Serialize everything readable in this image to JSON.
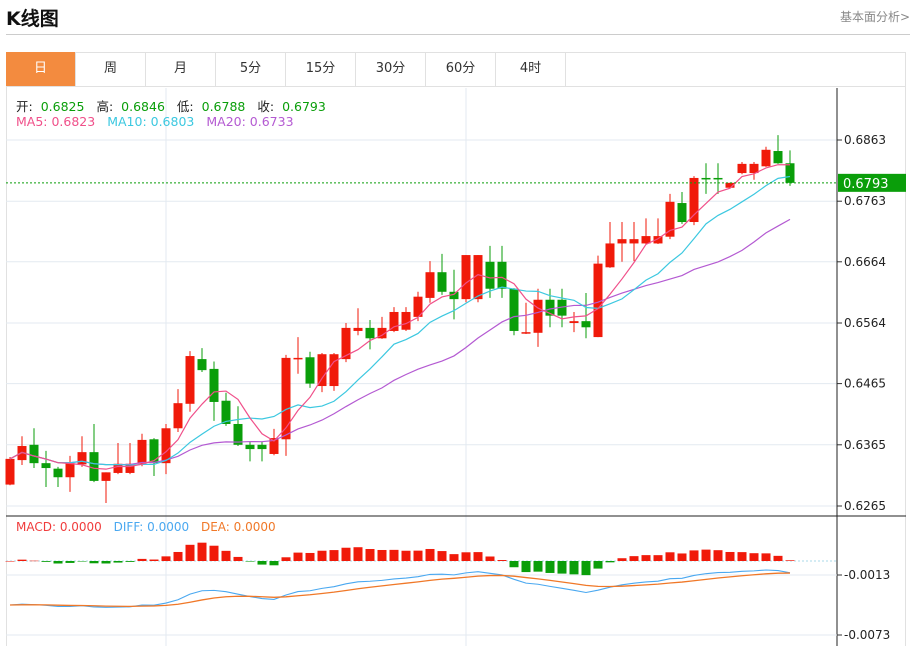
{
  "header": {
    "title": "K线图",
    "link": "基本面分析>"
  },
  "tabs": [
    "日",
    "周",
    "月",
    "5分",
    "15分",
    "30分",
    "60分",
    "4时"
  ],
  "active_tab": 0,
  "ohlc_info": {
    "open_label": "开:",
    "open": "0.6825",
    "high_label": "高:",
    "high": "0.6846",
    "low_label": "低:",
    "low": "0.6788",
    "close_label": "收:",
    "close": "0.6793"
  },
  "ma_info": {
    "ma5": "MA5: 0.6823",
    "ma10": "MA10: 0.6803",
    "ma20": "MA20: 0.6733"
  },
  "macd_info": {
    "macd": "MACD: 0.0000",
    "diff": "DIFF: 0.0000",
    "dea": "DEA: 0.0000"
  },
  "colors": {
    "up": "#f01a0a",
    "down": "#0a9e0a",
    "ma5": "#f0508a",
    "ma10": "#3cc8e0",
    "ma20": "#b45ad2",
    "diff": "#4aa8f0",
    "dea": "#f07828",
    "active_tab": "#f38b3f"
  },
  "chart_data": {
    "type": "candlestick",
    "price_axis_ticks": [
      "0.6863",
      "0.6763",
      "0.6664",
      "0.6564",
      "0.6465",
      "0.6365",
      "0.6265"
    ],
    "price_range": [
      0.6265,
      0.6863
    ],
    "current_price": "0.6793",
    "macd_axis_ticks": [
      "-0.0013",
      "-0.0073"
    ],
    "candles": [
      [
        0.63,
        0.6345,
        0.6299,
        0.6342
      ],
      [
        0.634,
        0.6379,
        0.6332,
        0.6363
      ],
      [
        0.6365,
        0.6392,
        0.6327,
        0.6335
      ],
      [
        0.6335,
        0.6355,
        0.6296,
        0.6327
      ],
      [
        0.6326,
        0.6329,
        0.6296,
        0.6312
      ],
      [
        0.6312,
        0.6347,
        0.6288,
        0.6335
      ],
      [
        0.6333,
        0.6379,
        0.6329,
        0.6353
      ],
      [
        0.6353,
        0.6399,
        0.6304,
        0.6306
      ],
      [
        0.6306,
        0.632,
        0.627,
        0.632
      ],
      [
        0.6319,
        0.6368,
        0.6317,
        0.6334
      ],
      [
        0.6319,
        0.6368,
        0.6317,
        0.6334
      ],
      [
        0.6334,
        0.6383,
        0.633,
        0.6373
      ],
      [
        0.6374,
        0.6376,
        0.6314,
        0.6335
      ],
      [
        0.6335,
        0.6399,
        0.6317,
        0.6392
      ],
      [
        0.6392,
        0.6456,
        0.6386,
        0.6433
      ],
      [
        0.6432,
        0.6518,
        0.6419,
        0.651
      ],
      [
        0.6505,
        0.6523,
        0.6484,
        0.6487
      ],
      [
        0.6489,
        0.6501,
        0.6404,
        0.6435
      ],
      [
        0.6437,
        0.645,
        0.6396,
        0.6399
      ],
      [
        0.6399,
        0.6428,
        0.6363,
        0.6365
      ],
      [
        0.6365,
        0.637,
        0.6338,
        0.6358
      ],
      [
        0.6365,
        0.637,
        0.6338,
        0.6358
      ],
      [
        0.635,
        0.6391,
        0.6348,
        0.6376
      ],
      [
        0.6374,
        0.6512,
        0.6347,
        0.6507
      ],
      [
        0.6505,
        0.6541,
        0.6481,
        0.6507
      ],
      [
        0.6508,
        0.6517,
        0.6458,
        0.6465
      ],
      [
        0.6461,
        0.6515,
        0.6451,
        0.6513
      ],
      [
        0.6461,
        0.6515,
        0.6453,
        0.6513
      ],
      [
        0.6505,
        0.6564,
        0.65,
        0.6556
      ],
      [
        0.6551,
        0.6588,
        0.6544,
        0.6556
      ],
      [
        0.6556,
        0.6569,
        0.6521,
        0.6539
      ],
      [
        0.6539,
        0.6574,
        0.6538,
        0.6556
      ],
      [
        0.6551,
        0.659,
        0.6549,
        0.6582
      ],
      [
        0.6553,
        0.659,
        0.6551,
        0.6582
      ],
      [
        0.6574,
        0.6615,
        0.6567,
        0.6607
      ],
      [
        0.6605,
        0.6665,
        0.6597,
        0.6647
      ],
      [
        0.6647,
        0.6677,
        0.661,
        0.6615
      ],
      [
        0.6615,
        0.6651,
        0.657,
        0.6603
      ],
      [
        0.6603,
        0.6675,
        0.6598,
        0.6675
      ],
      [
        0.6603,
        0.6675,
        0.6598,
        0.6675
      ],
      [
        0.6664,
        0.669,
        0.6605,
        0.662
      ],
      [
        0.6664,
        0.669,
        0.6605,
        0.662
      ],
      [
        0.662,
        0.6621,
        0.6544,
        0.6551
      ],
      [
        0.6548,
        0.6597,
        0.6546,
        0.6549
      ],
      [
        0.6548,
        0.662,
        0.6525,
        0.6602
      ],
      [
        0.6602,
        0.662,
        0.6557,
        0.6576
      ],
      [
        0.6602,
        0.662,
        0.6557,
        0.6576
      ],
      [
        0.6564,
        0.6582,
        0.6549,
        0.6567
      ],
      [
        0.6567,
        0.6613,
        0.6539,
        0.6557
      ],
      [
        0.6541,
        0.6674,
        0.6541,
        0.6661
      ],
      [
        0.6655,
        0.6729,
        0.6654,
        0.6694
      ],
      [
        0.6694,
        0.6729,
        0.6664,
        0.6701
      ],
      [
        0.6694,
        0.6729,
        0.6665,
        0.6701
      ],
      [
        0.6694,
        0.6735,
        0.6693,
        0.6706
      ],
      [
        0.6694,
        0.6735,
        0.6693,
        0.6706
      ],
      [
        0.6705,
        0.6775,
        0.6701,
        0.6762
      ],
      [
        0.676,
        0.6778,
        0.6726,
        0.6729
      ],
      [
        0.6729,
        0.6804,
        0.6724,
        0.6801
      ],
      [
        0.6801,
        0.6825,
        0.6775,
        0.6799
      ],
      [
        0.6801,
        0.6825,
        0.6775,
        0.6799
      ],
      [
        0.6785,
        0.6793,
        0.6784,
        0.6793
      ],
      [
        0.6809,
        0.6827,
        0.6807,
        0.6824
      ],
      [
        0.6809,
        0.6827,
        0.6798,
        0.6824
      ],
      [
        0.682,
        0.6852,
        0.6819,
        0.6847
      ],
      [
        0.6845,
        0.6871,
        0.6824,
        0.6825
      ],
      [
        0.6825,
        0.6846,
        0.6788,
        0.6793
      ]
    ],
    "candle_format": [
      "open",
      "high",
      "low",
      "close"
    ]
  }
}
